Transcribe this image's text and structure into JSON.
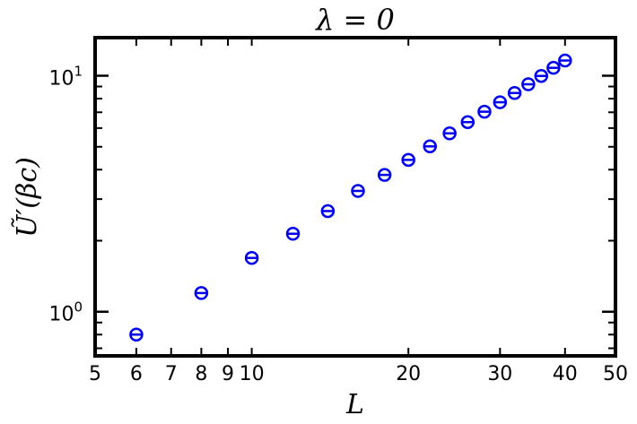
{
  "chart_data": {
    "type": "scatter",
    "title": "λ = 0",
    "xlabel": "L",
    "ylabel": "Ũ′(βc)",
    "xscale": "log",
    "yscale": "log",
    "xlim": [
      5,
      50
    ],
    "ylim": [
      0.65,
      14.5
    ],
    "grid": false,
    "legend": "none",
    "x_ticks": [
      {
        "value": 5,
        "label": "5"
      },
      {
        "value": 6,
        "label": "6"
      },
      {
        "value": 7,
        "label": "7"
      },
      {
        "value": 8,
        "label": "8"
      },
      {
        "value": 9,
        "label": "9"
      },
      {
        "value": 10,
        "label": "10"
      },
      {
        "value": 20,
        "label": "20"
      },
      {
        "value": 30,
        "label": "30"
      },
      {
        "value": 40,
        "label": "40"
      },
      {
        "value": 50,
        "label": "50"
      }
    ],
    "y_major_ticks": [
      {
        "value": 1,
        "base": "10",
        "exp": "0"
      },
      {
        "value": 10,
        "base": "10",
        "exp": "1"
      }
    ],
    "y_minor_ticks": [
      0.7,
      0.8,
      0.9,
      2,
      3,
      4,
      5,
      6,
      7,
      8,
      9
    ],
    "series": [
      {
        "color": "#0000ee",
        "marker": "circle-with-errorbar",
        "points": [
          {
            "x": 6,
            "y": 0.8
          },
          {
            "x": 8,
            "y": 1.2
          },
          {
            "x": 10,
            "y": 1.69
          },
          {
            "x": 12,
            "y": 2.14
          },
          {
            "x": 14,
            "y": 2.67
          },
          {
            "x": 16,
            "y": 3.25
          },
          {
            "x": 18,
            "y": 3.8
          },
          {
            "x": 20,
            "y": 4.4
          },
          {
            "x": 22,
            "y": 5.02
          },
          {
            "x": 24,
            "y": 5.7
          },
          {
            "x": 26,
            "y": 6.36
          },
          {
            "x": 28,
            "y": 7.04
          },
          {
            "x": 30,
            "y": 7.72
          },
          {
            "x": 32,
            "y": 8.45
          },
          {
            "x": 34,
            "y": 9.2
          },
          {
            "x": 36,
            "y": 9.98
          },
          {
            "x": 38,
            "y": 10.8
          },
          {
            "x": 40,
            "y": 11.6
          }
        ]
      }
    ]
  }
}
